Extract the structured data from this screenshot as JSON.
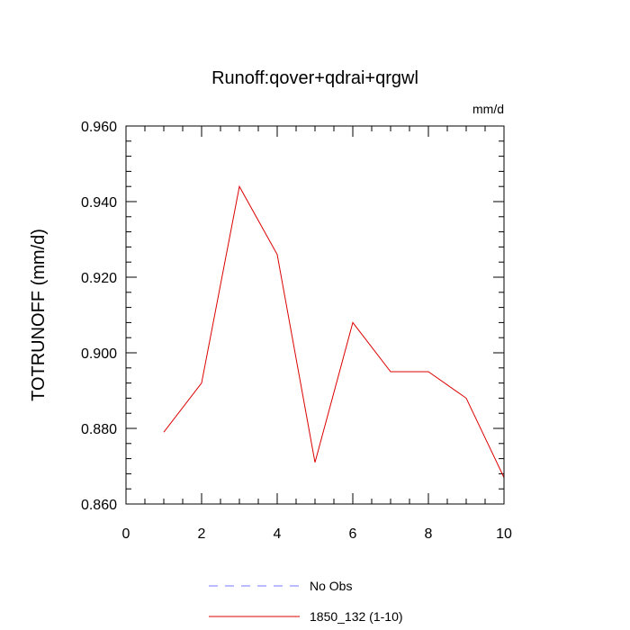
{
  "chart_data": {
    "type": "line",
    "title": "Runoff:qover+qdrai+qrgwl",
    "units": "mm/d",
    "xlabel": "",
    "ylabel": "TOTRUNOFF  (mm/d)",
    "xlim": [
      0,
      10
    ],
    "ylim": [
      0.86,
      0.96
    ],
    "x_ticks": [
      "0",
      "2",
      "4",
      "6",
      "8",
      "10"
    ],
    "y_ticks": [
      "0.860",
      "0.880",
      "0.900",
      "0.920",
      "0.940",
      "0.960"
    ],
    "grid": false,
    "legend_position": "bottom",
    "series": [
      {
        "name": "No Obs",
        "color": "#7777ff",
        "dash": "dashed",
        "x": [],
        "y": []
      },
      {
        "name": "1850_132 (1-10)",
        "color": "#dd0000",
        "dash": "solid",
        "x": [
          1,
          2,
          3,
          4,
          5,
          6,
          7,
          8,
          9,
          10
        ],
        "y": [
          0.879,
          0.892,
          0.944,
          0.926,
          0.871,
          0.908,
          0.895,
          0.895,
          0.888,
          0.867
        ]
      }
    ]
  }
}
